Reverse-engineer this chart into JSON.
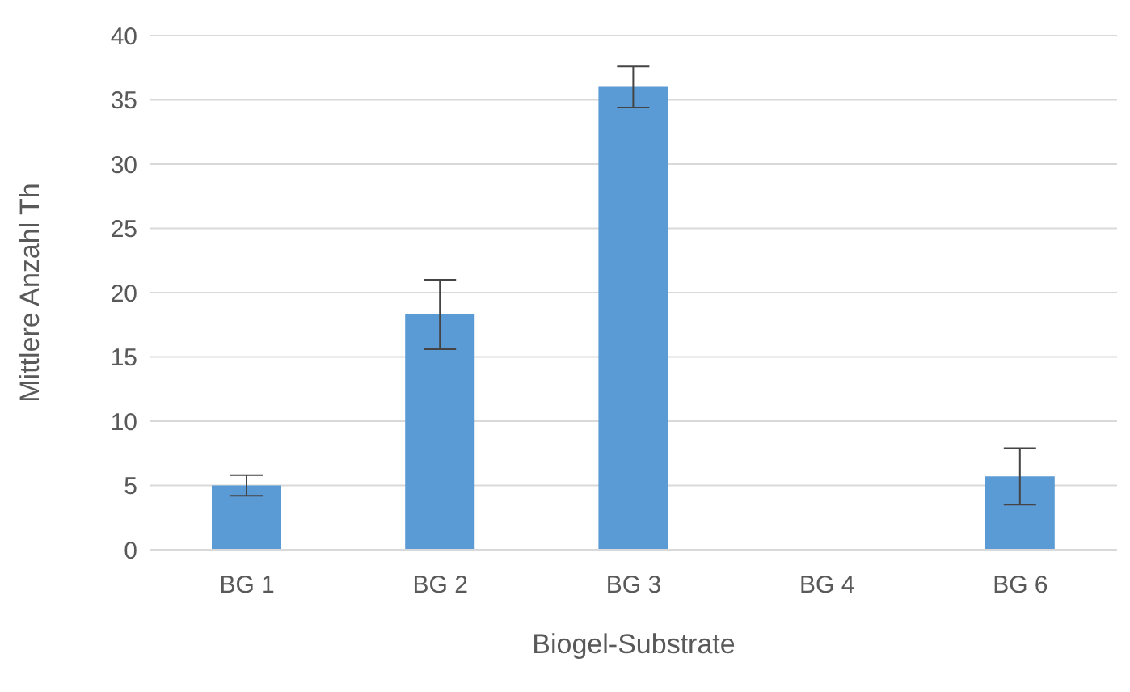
{
  "chart_data": {
    "type": "bar",
    "xlabel": "Biogel-Substrate",
    "ylabel": "Mittlere Anzahl Th",
    "categories": [
      "BG 1",
      "BG 2",
      "BG 3",
      "BG 4",
      "BG 6"
    ],
    "values": [
      5.0,
      18.3,
      36.0,
      null,
      5.7
    ],
    "errors": [
      0.8,
      2.7,
      1.6,
      null,
      2.2
    ],
    "color": "#5b9bd5",
    "ylim": [
      0,
      40
    ],
    "yticks": [
      0,
      5,
      10,
      15,
      20,
      25,
      30,
      35,
      40
    ],
    "grid": "y"
  }
}
